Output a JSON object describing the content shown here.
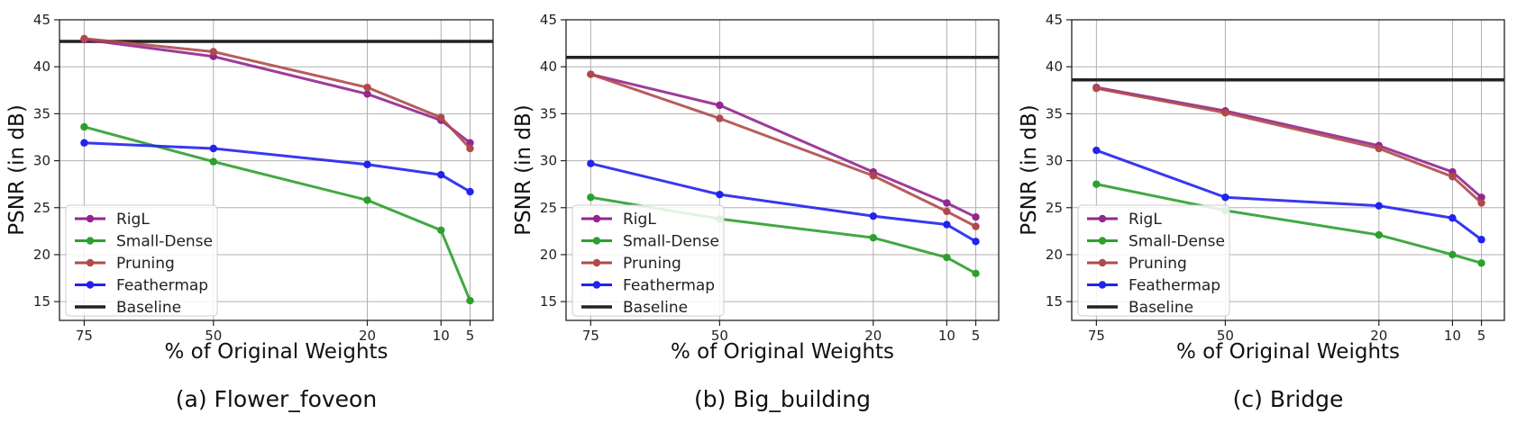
{
  "chart_data": [
    {
      "type": "line",
      "caption": "(a) Flower_foveon",
      "xlabel": "% of Original Weights",
      "ylabel": "PSNR (in dB)",
      "x": [
        75,
        50,
        20,
        10,
        5
      ],
      "x_ticks": [
        "75",
        "50",
        "20",
        "10",
        "5"
      ],
      "ylim": [
        13,
        45
      ],
      "y_ticks": [
        15,
        20,
        25,
        30,
        35,
        40,
        45
      ],
      "grid": true,
      "legend": "lower-left",
      "series": [
        {
          "name": "RigL",
          "color": "#92278f",
          "values": [
            42.9,
            41.1,
            37.1,
            34.3,
            31.9
          ]
        },
        {
          "name": "Small-Dense",
          "color": "#2ca02c",
          "values": [
            33.6,
            29.9,
            25.8,
            22.6,
            15.1
          ]
        },
        {
          "name": "Pruning",
          "color": "#b04a4a",
          "values": [
            43.0,
            41.6,
            37.8,
            34.6,
            31.3
          ]
        },
        {
          "name": "Feathermap",
          "color": "#2222ee",
          "values": [
            31.9,
            31.3,
            29.6,
            28.5,
            26.7
          ]
        }
      ],
      "baseline": {
        "name": "Baseline",
        "color": "#222222",
        "value": 42.7
      }
    },
    {
      "type": "line",
      "caption": "(b) Big_building",
      "xlabel": "% of Original Weights",
      "ylabel": "PSNR (in dB)",
      "x": [
        75,
        50,
        20,
        10,
        5
      ],
      "x_ticks": [
        "75",
        "50",
        "20",
        "10",
        "5"
      ],
      "ylim": [
        13,
        45
      ],
      "y_ticks": [
        15,
        20,
        25,
        30,
        35,
        40,
        45
      ],
      "grid": true,
      "legend": "lower-left",
      "series": [
        {
          "name": "RigL",
          "color": "#92278f",
          "values": [
            39.2,
            35.9,
            28.8,
            25.5,
            24.0
          ]
        },
        {
          "name": "Small-Dense",
          "color": "#2ca02c",
          "values": [
            26.1,
            23.8,
            21.8,
            19.7,
            18.0
          ]
        },
        {
          "name": "Pruning",
          "color": "#b04a4a",
          "values": [
            39.2,
            34.5,
            28.4,
            24.6,
            23.0
          ]
        },
        {
          "name": "Feathermap",
          "color": "#2222ee",
          "values": [
            29.7,
            26.4,
            24.1,
            23.2,
            21.4
          ]
        }
      ],
      "baseline": {
        "name": "Baseline",
        "color": "#222222",
        "value": 41.0
      }
    },
    {
      "type": "line",
      "caption": "(c) Bridge",
      "xlabel": "% of Original Weights",
      "ylabel": "PSNR (in dB)",
      "x": [
        75,
        50,
        20,
        10,
        5
      ],
      "x_ticks": [
        "75",
        "50",
        "20",
        "10",
        "5"
      ],
      "ylim": [
        13,
        45
      ],
      "y_ticks": [
        15,
        20,
        25,
        30,
        35,
        40,
        45
      ],
      "grid": true,
      "legend": "lower-left",
      "series": [
        {
          "name": "RigL",
          "color": "#92278f",
          "values": [
            37.8,
            35.3,
            31.6,
            28.8,
            26.1
          ]
        },
        {
          "name": "Small-Dense",
          "color": "#2ca02c",
          "values": [
            27.5,
            24.7,
            22.1,
            20.0,
            19.1
          ]
        },
        {
          "name": "Pruning",
          "color": "#b04a4a",
          "values": [
            37.7,
            35.1,
            31.3,
            28.3,
            25.5
          ]
        },
        {
          "name": "Feathermap",
          "color": "#2222ee",
          "values": [
            31.1,
            26.1,
            25.2,
            23.9,
            21.6
          ]
        }
      ],
      "baseline": {
        "name": "Baseline",
        "color": "#222222",
        "value": 38.6
      }
    }
  ]
}
